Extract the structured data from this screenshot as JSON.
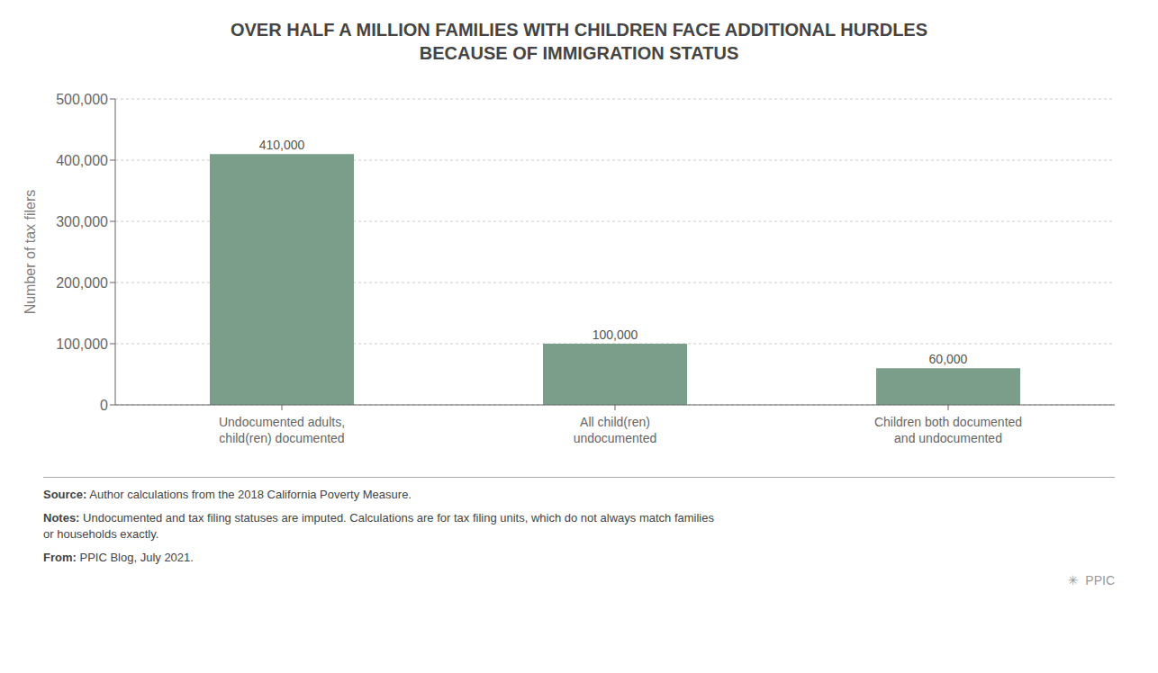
{
  "chart_data": {
    "type": "bar",
    "title": "OVER HALF A MILLION FAMILIES WITH CHILDREN FACE ADDITIONAL HURDLES\nBECAUSE OF IMMIGRATION STATUS",
    "categories": [
      "Undocumented adults,\nchild(ren) documented",
      "All child(ren)\nundocumented",
      "Children both documented\nand undocumented"
    ],
    "values": [
      410000,
      100000,
      60000
    ],
    "value_labels": [
      "410,000",
      "100,000",
      "60,000"
    ],
    "data_labels": true,
    "color": "#7a9e8a",
    "ylabel": "Number of tax filers",
    "ylim": [
      0,
      500000
    ],
    "yticks": [
      0,
      {
        "value": 100000,
        "label": "100,000"
      },
      {
        "value": 200000,
        "label": "200,000"
      },
      {
        "value": 300000,
        "label": "300,000"
      },
      {
        "value": 400000,
        "label": "400,000"
      },
      {
        "value": 500000,
        "label": "500,000"
      }
    ],
    "grid": true,
    "footnotes": [
      [
        "Source:",
        " Author calculations from the 2018 California Poverty Measure."
      ],
      [
        "Notes:",
        " Undocumented and tax filing statuses are imputed. Calculations are for tax filing units, which do not always match families\nor households exactly."
      ],
      [
        "From:",
        " PPIC Blog, July 2021."
      ]
    ],
    "annotations": [
      "✳  PPIC"
    ]
  }
}
